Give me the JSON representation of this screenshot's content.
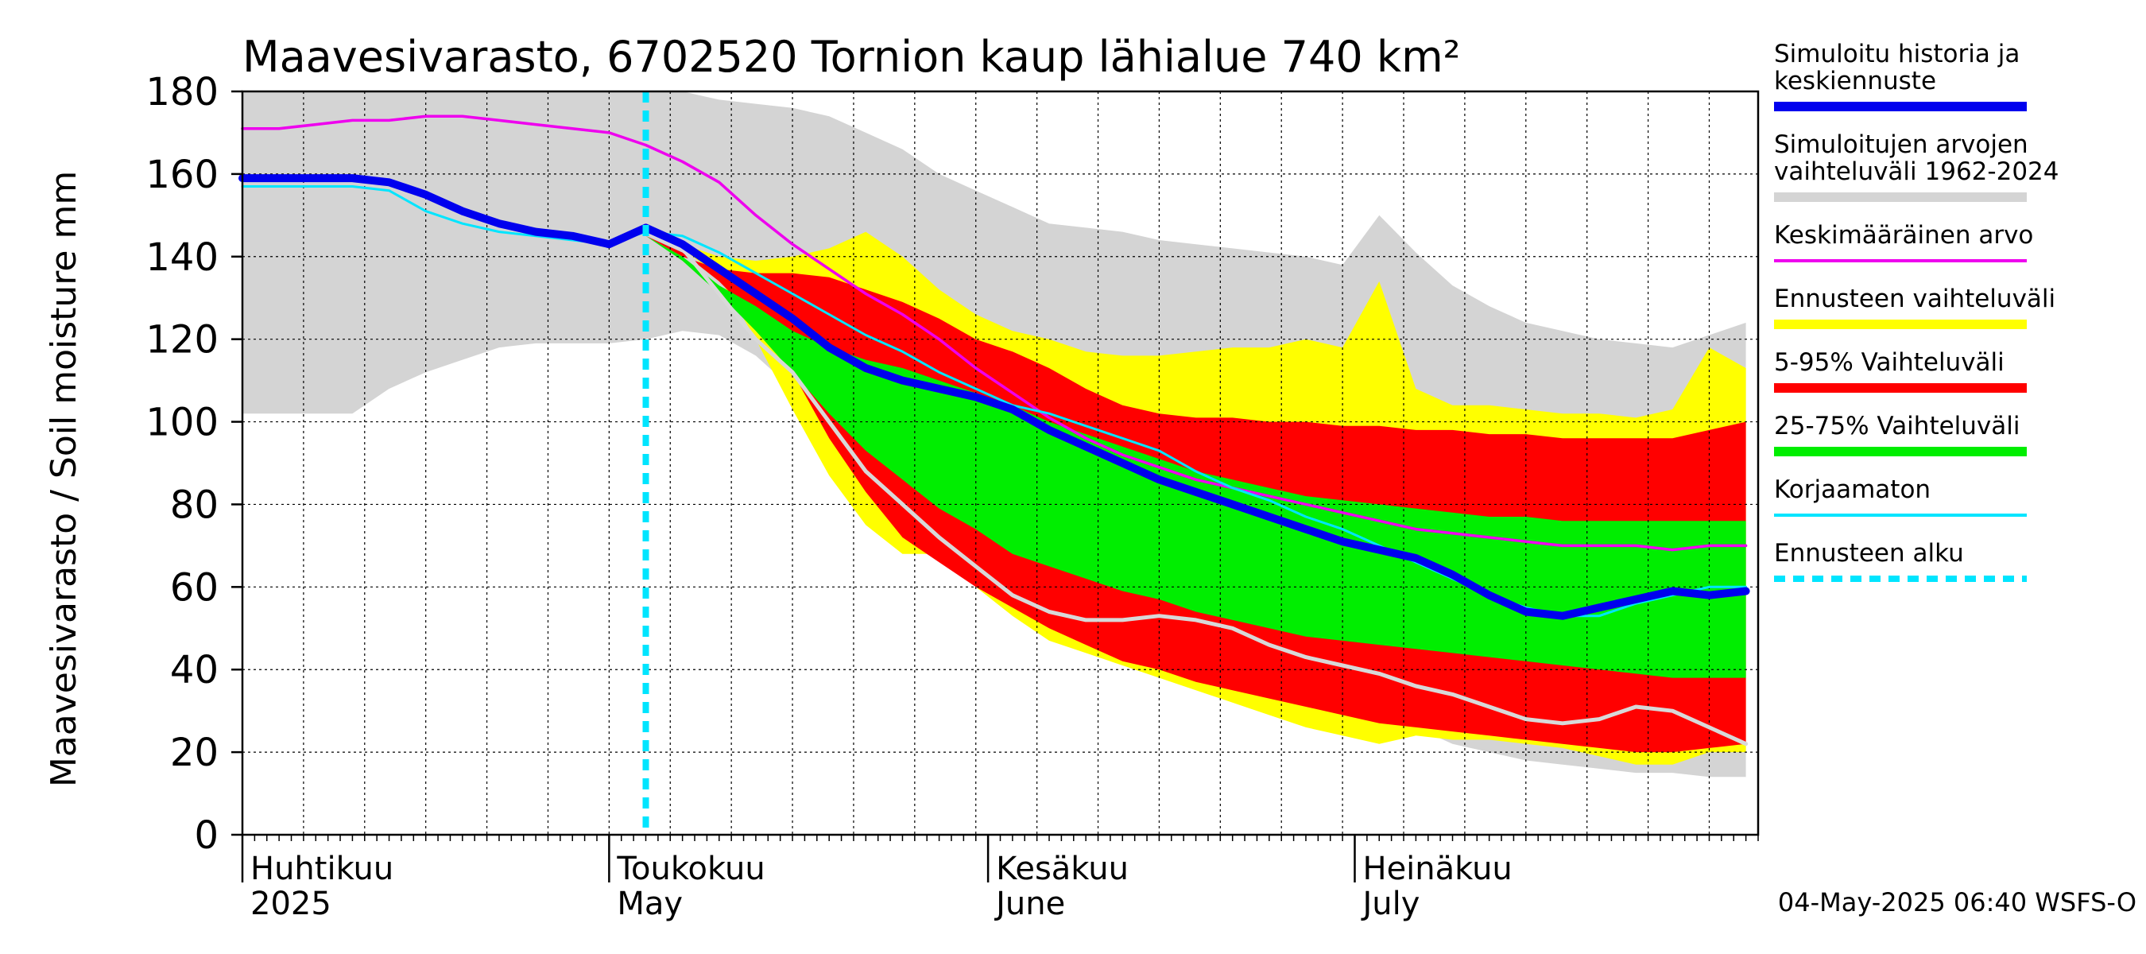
{
  "chart_data": {
    "type": "area",
    "title": "Maavesivarasto, 6702520 Tornion kaup lähialue 740 km²",
    "ylabel": "Maavesivarasto / Soil moisture   mm",
    "xlabel": "",
    "ylim": [
      0,
      180
    ],
    "yticks": [
      0,
      20,
      40,
      60,
      80,
      100,
      120,
      140,
      160,
      180
    ],
    "x_unit": "days since 1 April 2025",
    "xlim": [
      0,
      124
    ],
    "grid": true,
    "x_month_labels": [
      {
        "fi": "Huhtikuu",
        "en": "2025",
        "day": 0
      },
      {
        "fi": "Toukokuu",
        "en": "May",
        "day": 30
      },
      {
        "fi": "Kesäkuu",
        "en": "June",
        "day": 61
      },
      {
        "fi": "Heinäkuu",
        "en": "July",
        "day": 91
      }
    ],
    "forecast_start_day": 33,
    "x": [
      0,
      3,
      6,
      9,
      12,
      15,
      18,
      21,
      24,
      27,
      30,
      33,
      36,
      39,
      42,
      45,
      48,
      51,
      54,
      57,
      60,
      63,
      66,
      69,
      72,
      75,
      78,
      81,
      84,
      87,
      90,
      93,
      96,
      99,
      102,
      105,
      108,
      111,
      114,
      117,
      120,
      123
    ],
    "series": [
      {
        "name": "Simuloitujen arvojen vaihteluväli 1962-2024 (max)",
        "color": "#d4d4d4",
        "values": [
          180,
          180,
          180,
          180,
          180,
          180,
          180,
          180,
          180,
          180,
          180,
          180,
          180,
          178,
          177,
          176,
          174,
          170,
          166,
          160,
          156,
          152,
          148,
          147,
          146,
          144,
          143,
          142,
          141,
          140,
          138,
          150,
          141,
          133,
          128,
          124,
          122,
          120,
          119,
          118,
          121,
          124
        ]
      },
      {
        "name": "Simuloitujen arvojen vaihteluväli 1962-2024 (min)",
        "color": "#d4d4d4",
        "values": [
          102,
          102,
          102,
          102,
          108,
          112,
          115,
          118,
          119,
          119,
          119,
          120,
          122,
          121,
          116,
          108,
          100,
          90,
          80,
          70,
          60,
          55,
          50,
          48,
          46,
          44,
          42,
          40,
          38,
          36,
          34,
          30,
          26,
          22,
          20,
          18,
          17,
          16,
          15,
          15,
          14,
          14
        ]
      },
      {
        "name": "Ennusteen vaihteluväli (max)",
        "color": "#ffff00",
        "values": [
          null,
          null,
          null,
          null,
          null,
          null,
          null,
          null,
          null,
          null,
          null,
          146,
          143,
          140,
          139,
          140,
          142,
          146,
          140,
          132,
          126,
          122,
          120,
          117,
          116,
          116,
          117,
          118,
          118,
          120,
          118,
          134,
          108,
          104,
          104,
          103,
          102,
          102,
          101,
          103,
          118,
          113
        ]
      },
      {
        "name": "Ennusteen vaihteluväli (min)",
        "color": "#ffff00",
        "values": [
          null,
          null,
          null,
          null,
          null,
          null,
          null,
          null,
          null,
          null,
          null,
          146,
          142,
          135,
          120,
          103,
          87,
          75,
          68,
          68,
          60,
          53,
          47,
          44,
          41,
          38,
          35,
          32,
          29,
          26,
          24,
          22,
          24,
          23,
          23,
          22,
          21,
          19,
          17,
          17,
          20,
          20
        ]
      },
      {
        "name": "5-95% Vaihteluväli (upper)",
        "color": "#ff0000",
        "values": [
          null,
          null,
          null,
          null,
          null,
          null,
          null,
          null,
          null,
          null,
          null,
          145,
          140,
          137,
          136,
          136,
          135,
          132,
          129,
          125,
          120,
          117,
          113,
          108,
          104,
          102,
          101,
          101,
          100,
          100,
          99,
          99,
          98,
          98,
          97,
          97,
          96,
          96,
          96,
          96,
          98,
          100
        ]
      },
      {
        "name": "5-95% Vaihteluväli (lower)",
        "color": "#ff0000",
        "values": [
          null,
          null,
          null,
          null,
          null,
          null,
          null,
          null,
          null,
          null,
          null,
          145,
          141,
          134,
          125,
          112,
          96,
          83,
          72,
          66,
          60,
          55,
          50,
          46,
          42,
          40,
          37,
          35,
          33,
          31,
          29,
          27,
          26,
          25,
          24,
          23,
          22,
          21,
          20,
          20,
          21,
          22
        ]
      },
      {
        "name": "25-75% Vaihteluväli (upper)",
        "color": "#00ee00",
        "values": [
          null,
          null,
          null,
          null,
          null,
          null,
          null,
          null,
          null,
          null,
          null,
          145,
          140,
          133,
          128,
          122,
          118,
          115,
          113,
          110,
          107,
          104,
          100,
          97,
          94,
          91,
          88,
          86,
          84,
          82,
          81,
          80,
          79,
          78,
          77,
          77,
          76,
          76,
          76,
          76,
          76,
          76
        ]
      },
      {
        "name": "25-75% Vaihteluväli (lower)",
        "color": "#00ee00",
        "values": [
          null,
          null,
          null,
          null,
          null,
          null,
          null,
          null,
          null,
          null,
          null,
          145,
          139,
          131,
          122,
          112,
          102,
          93,
          86,
          79,
          74,
          68,
          65,
          62,
          59,
          57,
          54,
          52,
          50,
          48,
          47,
          46,
          45,
          44,
          43,
          42,
          41,
          40,
          39,
          38,
          38,
          38
        ]
      },
      {
        "name": "Keskimääräinen arvo",
        "color": "#ee00ee",
        "values": [
          171,
          171,
          172,
          173,
          173,
          174,
          174,
          173,
          172,
          171,
          170,
          167,
          163,
          158,
          150,
          143,
          137,
          131,
          126,
          120,
          113,
          107,
          101,
          96,
          92,
          89,
          86,
          84,
          82,
          80,
          78,
          76,
          74,
          73,
          72,
          71,
          70,
          70,
          70,
          69,
          70,
          70
        ]
      },
      {
        "name": "Korjaamaton",
        "color": "#00e5ff",
        "values": [
          157,
          157,
          157,
          157,
          156,
          151,
          148,
          146,
          145,
          144,
          143,
          146,
          145,
          141,
          136,
          131,
          126,
          121,
          117,
          112,
          108,
          104,
          102,
          99,
          96,
          93,
          88,
          84,
          81,
          77,
          74,
          70,
          66,
          62,
          58,
          55,
          53,
          53,
          56,
          58,
          60,
          60
        ]
      },
      {
        "name": "Simuloitu historia ja keskiennuste",
        "color": "#0000ee",
        "values": [
          159,
          159,
          159,
          159,
          158,
          155,
          151,
          148,
          146,
          145,
          143,
          147,
          143,
          137,
          131,
          125,
          118,
          113,
          110,
          108,
          106,
          103,
          98,
          94,
          90,
          86,
          83,
          80,
          77,
          74,
          71,
          69,
          67,
          63,
          58,
          54,
          53,
          55,
          57,
          59,
          58,
          59
        ]
      },
      {
        "name": "Low trace (light grey)",
        "color": "#d8d8d8",
        "values": [
          null,
          null,
          null,
          null,
          null,
          null,
          null,
          null,
          null,
          null,
          null,
          146,
          142,
          131,
          120,
          112,
          100,
          88,
          80,
          72,
          65,
          58,
          54,
          52,
          52,
          53,
          52,
          50,
          46,
          43,
          41,
          39,
          36,
          34,
          31,
          28,
          27,
          28,
          31,
          30,
          26,
          22
        ]
      }
    ]
  },
  "legend": [
    {
      "label_line1": "Simuloitu historia ja",
      "label_line2": "keskiennuste",
      "color": "#0000ee",
      "style": "thick"
    },
    {
      "label_line1": "Simuloitujen arvojen",
      "label_line2": "vaihteluväli 1962-2024",
      "color": "#d4d4d4",
      "style": "thick"
    },
    {
      "label_line1": "Keskimääräinen arvo",
      "label_line2": "",
      "color": "#ee00ee",
      "style": "thin"
    },
    {
      "label_line1": "Ennusteen vaihteluväli",
      "label_line2": "",
      "color": "#ffff00",
      "style": "thick"
    },
    {
      "label_line1": "5-95% Vaihteluväli",
      "label_line2": "",
      "color": "#ff0000",
      "style": "thick"
    },
    {
      "label_line1": "25-75% Vaihteluväli",
      "label_line2": "",
      "color": "#00ee00",
      "style": "thick"
    },
    {
      "label_line1": "Korjaamaton",
      "label_line2": "",
      "color": "#00e5ff",
      "style": "thin"
    },
    {
      "label_line1": "Ennusteen alku",
      "label_line2": "",
      "color": "#00e5ff",
      "style": "dashed"
    }
  ],
  "footer": "04-May-2025 06:40 WSFS-O"
}
